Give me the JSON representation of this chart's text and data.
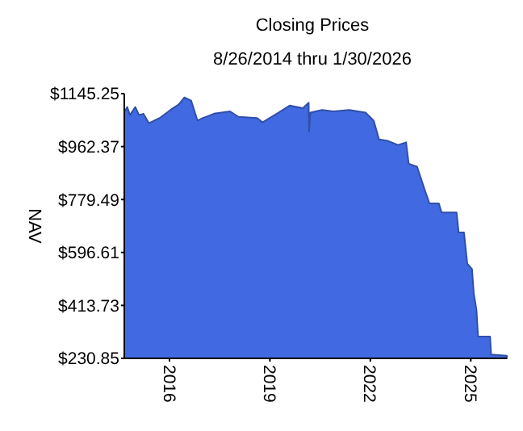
{
  "chart_data": {
    "type": "area",
    "title": "Closing Prices",
    "subtitle": "8/26/2014 thru 1/30/2026",
    "ylabel": "NAV",
    "x": [
      "2014-08-26",
      "2014-09-27",
      "2014-10-27",
      "2014-12-24",
      "2015-02-03",
      "2015-03-22",
      "2015-05-22",
      "2015-09-16",
      "2016-01-12",
      "2016-04-12",
      "2016-06-10",
      "2016-08-25",
      "2016-11-02",
      "2017-01-01",
      "2017-05-01",
      "2017-10-23",
      "2018-01-23",
      "2018-08-15",
      "2018-10-12",
      "2019-04-08",
      "2019-08-04",
      "2019-12-28",
      "2020-02-28",
      "2020-03-03",
      "2020-03-18",
      "2020-07-24",
      "2020-11-21",
      "2021-05-16",
      "2021-11-10",
      "2022-02-07",
      "2022-04-06",
      "2022-07-02",
      "2022-10-30",
      "2023-01-26",
      "2023-02-24",
      "2023-05-26",
      "2023-08-22",
      "2023-10-08",
      "2024-01-19",
      "2024-02-17",
      "2024-07-30",
      "2024-08-22",
      "2024-10-19",
      "2024-11-24",
      "2025-01-15",
      "2025-02-03",
      "2025-03-04",
      "2025-03-22",
      "2025-07-31",
      "2025-08-11",
      "2026-01-30"
    ],
    "series": [
      {
        "color": "#4169e1",
        "values": [
          1080,
          1099,
          1071,
          1099,
          1071,
          1076,
          1043,
          1061,
          1089,
          1108,
          1132,
          1121,
          1052,
          1061,
          1076,
          1084,
          1065,
          1061,
          1046,
          1080,
          1104,
          1095,
          1114,
          1015,
          1080,
          1089,
          1084,
          1089,
          1080,
          1052,
          987,
          983,
          968,
          977,
          903,
          893,
          809,
          766,
          766,
          735,
          735,
          666,
          666,
          558,
          539,
          455,
          399,
          306,
          306,
          244,
          240
        ]
      }
    ],
    "xlim": [
      "2014-08-26",
      "2026-01-30"
    ],
    "xticks": [
      "2016",
      "2019",
      "2022",
      "2025"
    ],
    "ylim": [
      230.85,
      1145.25
    ],
    "yticks": [
      {
        "value": 230.85,
        "label": "$230.85"
      },
      {
        "value": 413.73,
        "label": "$413.73"
      },
      {
        "value": 596.61,
        "label": "$596.61"
      },
      {
        "value": 779.49,
        "label": "$779.49"
      },
      {
        "value": 962.37,
        "label": "$962.37"
      },
      {
        "value": 1145.25,
        "label": "$1145.25"
      }
    ],
    "grid": false
  }
}
